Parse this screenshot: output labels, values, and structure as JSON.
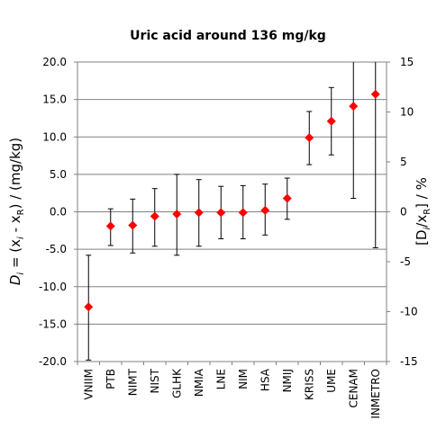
{
  "chart_data": {
    "type": "scatter",
    "title": "Uric acid around 136 mg/kg",
    "ylabel_left": {
      "main": "D",
      "sub_i": "i",
      "rest1": " = (x",
      "sub_i2": "i",
      "rest2": " - x",
      "sub_R": "R",
      "rest3": ") / (mg/kg)"
    },
    "ylabel_right": {
      "open": "[D",
      "sub_i": "i",
      "mid": "/x",
      "sub_R": "R",
      "close": "] / %"
    },
    "ylim_left": [
      -20,
      20
    ],
    "ylim_right": [
      -15,
      15
    ],
    "left_ticks": [
      "20.0",
      "15.0",
      "10.0",
      "5.0",
      "0.0",
      "-5.0",
      "-10.0",
      "-15.0",
      "-20.0"
    ],
    "right_ticks": [
      "15",
      "10",
      "5",
      "0",
      "-5",
      "-10",
      "-15"
    ],
    "grid": "horizontal",
    "marker": "diamond",
    "marker_color": "#ff0000",
    "categories": [
      "VNIIM",
      "PTB",
      "NIMT",
      "NIST",
      "GLHK",
      "NMIA",
      "LNE",
      "NIM",
      "HSA",
      "NMIJ",
      "KRISS",
      "UME",
      "CENAM",
      "INMETRO"
    ],
    "values": [
      -12.7,
      -1.9,
      -1.8,
      -0.6,
      -0.3,
      -0.1,
      -0.1,
      -0.1,
      0.2,
      1.8,
      9.9,
      12.1,
      14.1,
      15.7
    ],
    "error_low": [
      -19.8,
      -4.5,
      -5.5,
      -4.6,
      -5.8,
      -4.6,
      -3.6,
      -3.6,
      -3.1,
      -1.0,
      6.3,
      7.6,
      1.8,
      -4.8
    ],
    "error_high": [
      -5.8,
      0.4,
      1.7,
      3.1,
      5.0,
      4.3,
      3.4,
      3.5,
      3.7,
      4.5,
      13.4,
      16.6,
      20.0,
      20.0
    ]
  }
}
